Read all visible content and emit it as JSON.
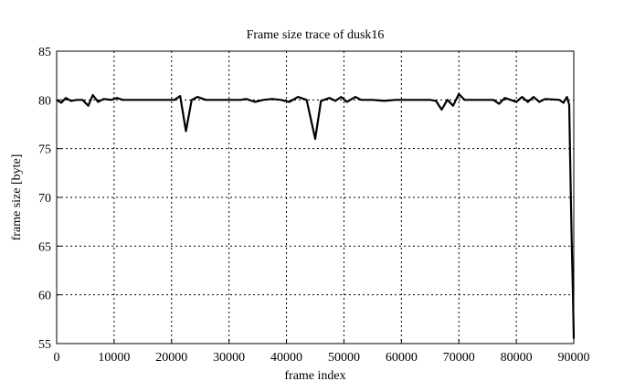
{
  "chart_data": {
    "type": "line",
    "title": "Frame size trace of dusk16",
    "xlabel": "frame index",
    "ylabel": "frame size [byte]",
    "xlim": [
      0,
      90000
    ],
    "ylim": [
      55,
      85
    ],
    "xticks": [
      0,
      10000,
      20000,
      30000,
      40000,
      50000,
      60000,
      70000,
      80000,
      90000
    ],
    "yticks": [
      55,
      60,
      65,
      70,
      75,
      80,
      85
    ],
    "grid": true,
    "line_color": "#000000",
    "x": [
      0,
      800,
      1600,
      2500,
      3500,
      4500,
      5500,
      6300,
      7200,
      8200,
      9500,
      10500,
      11500,
      13000,
      15000,
      17000,
      19000,
      20500,
      21500,
      22500,
      23500,
      24500,
      26000,
      28000,
      30000,
      32000,
      33000,
      34500,
      36000,
      37500,
      39000,
      40500,
      42000,
      43500,
      45000,
      46000,
      47500,
      48500,
      49500,
      50500,
      52000,
      53000,
      55000,
      57000,
      59000,
      62000,
      65000,
      66000,
      67000,
      68000,
      69000,
      70000,
      71000,
      73000,
      75000,
      76000,
      77000,
      78000,
      79000,
      80000,
      81000,
      82000,
      83000,
      84000,
      85000,
      87500,
      88200,
      88800,
      89200,
      89400,
      89550,
      89700,
      89850,
      90000
    ],
    "values": [
      80.0,
      79.7,
      80.2,
      79.9,
      80.0,
      80.0,
      79.4,
      80.5,
      79.8,
      80.1,
      80.0,
      80.2,
      80.0,
      80.0,
      80.0,
      80.0,
      80.0,
      80.0,
      80.4,
      76.8,
      80.0,
      80.3,
      80.0,
      80.0,
      80.0,
      80.0,
      80.1,
      79.8,
      80.0,
      80.1,
      80.0,
      79.8,
      80.3,
      80.0,
      76.0,
      79.9,
      80.2,
      79.9,
      80.3,
      79.8,
      80.3,
      80.0,
      80.0,
      79.9,
      80.0,
      80.0,
      80.0,
      79.9,
      79.0,
      80.0,
      79.4,
      80.6,
      80.0,
      80.0,
      80.0,
      80.0,
      79.6,
      80.2,
      80.0,
      79.8,
      80.3,
      79.8,
      80.3,
      79.8,
      80.1,
      80.0,
      79.7,
      80.3,
      79.5,
      73.0,
      68.0,
      64.0,
      60.0,
      55.5
    ]
  }
}
